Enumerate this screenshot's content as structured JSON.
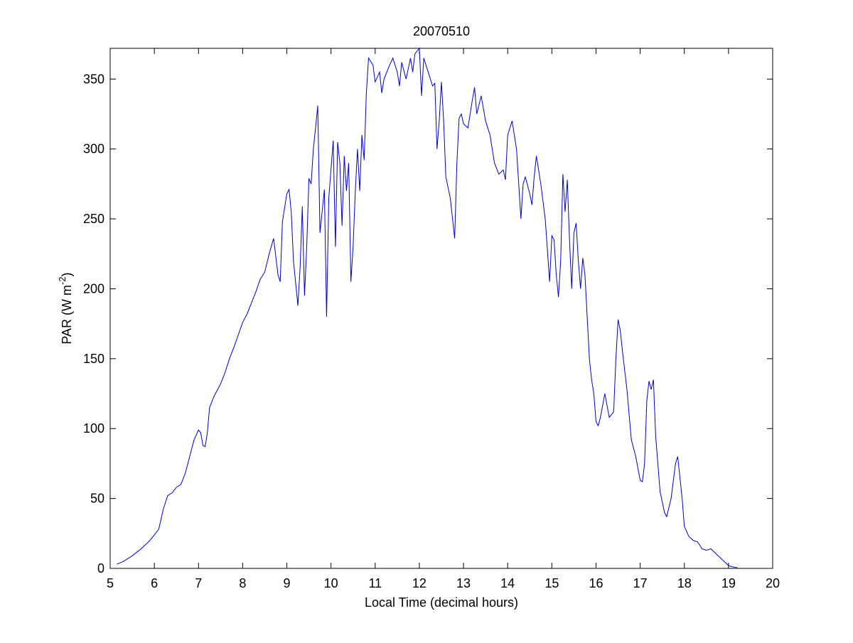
{
  "chart_data": {
    "type": "line",
    "title": "20070510",
    "xlabel": "Local Time (decimal hours)",
    "ylabel": [
      "PAR (W m",
      "-2",
      ")"
    ],
    "xlim": [
      5,
      20
    ],
    "ylim": [
      0,
      372
    ],
    "xticks": [
      5,
      6,
      7,
      8,
      9,
      10,
      11,
      12,
      13,
      14,
      15,
      16,
      17,
      18,
      19,
      20
    ],
    "yticks": [
      0,
      50,
      100,
      150,
      200,
      250,
      300,
      350
    ],
    "grid": false,
    "series": [
      {
        "color": "#0000cc",
        "x": [
          5.15,
          5.3,
          5.5,
          5.7,
          5.9,
          6.0,
          6.1,
          6.2,
          6.3,
          6.4,
          6.5,
          6.6,
          6.7,
          6.8,
          6.9,
          7.0,
          7.05,
          7.1,
          7.15,
          7.2,
          7.25,
          7.35,
          7.5,
          7.6,
          7.7,
          7.8,
          7.9,
          8.0,
          8.1,
          8.2,
          8.3,
          8.4,
          8.5,
          8.6,
          8.7,
          8.8,
          8.85,
          8.9,
          9.0,
          9.05,
          9.1,
          9.15,
          9.25,
          9.3,
          9.35,
          9.4,
          9.45,
          9.5,
          9.55,
          9.6,
          9.65,
          9.7,
          9.75,
          9.85,
          9.9,
          9.95,
          10.05,
          10.1,
          10.15,
          10.2,
          10.25,
          10.3,
          10.35,
          10.4,
          10.45,
          10.5,
          10.55,
          10.6,
          10.65,
          10.7,
          10.75,
          10.8,
          10.85,
          10.95,
          11.0,
          11.1,
          11.15,
          11.2,
          11.3,
          11.4,
          11.5,
          11.55,
          11.6,
          11.7,
          11.8,
          11.85,
          11.9,
          12.0,
          12.05,
          12.1,
          12.2,
          12.3,
          12.35,
          12.4,
          12.45,
          12.5,
          12.55,
          12.6,
          12.7,
          12.8,
          12.85,
          12.9,
          12.95,
          13.0,
          13.1,
          13.2,
          13.25,
          13.3,
          13.4,
          13.5,
          13.6,
          13.7,
          13.8,
          13.9,
          13.95,
          14.0,
          14.1,
          14.2,
          14.3,
          14.35,
          14.4,
          14.5,
          14.55,
          14.6,
          14.65,
          14.75,
          14.85,
          14.95,
          15.0,
          15.05,
          15.1,
          15.15,
          15.2,
          15.25,
          15.3,
          15.35,
          15.4,
          15.45,
          15.5,
          15.55,
          15.6,
          15.65,
          15.7,
          15.75,
          15.8,
          15.85,
          15.9,
          15.95,
          16.0,
          16.05,
          16.1,
          16.2,
          16.3,
          16.4,
          16.45,
          16.5,
          16.55,
          16.6,
          16.7,
          16.75,
          16.8,
          16.9,
          17.0,
          17.05,
          17.1,
          17.15,
          17.2,
          17.25,
          17.3,
          17.35,
          17.45,
          17.55,
          17.6,
          17.7,
          17.8,
          17.85,
          17.95,
          18.0,
          18.1,
          18.2,
          18.3,
          18.4,
          18.5,
          18.6,
          18.7,
          18.8,
          18.9,
          19.0,
          19.1,
          19.2
        ],
        "values": [
          3,
          5,
          9,
          14,
          20,
          24,
          28,
          42,
          52,
          54,
          58,
          60,
          68,
          80,
          92,
          99,
          97,
          88,
          87,
          97,
          115,
          123,
          132,
          140,
          150,
          158,
          167,
          176,
          182,
          190,
          198,
          207,
          212,
          225,
          236,
          210,
          205,
          248,
          268,
          271,
          255,
          220,
          188,
          215,
          259,
          195,
          230,
          279,
          275,
          300,
          315,
          331,
          240,
          271,
          180,
          265,
          306,
          230,
          305,
          290,
          245,
          295,
          270,
          290,
          205,
          230,
          270,
          300,
          270,
          310,
          292,
          340,
          365,
          360,
          348,
          355,
          340,
          350,
          358,
          365,
          355,
          345,
          362,
          350,
          365,
          355,
          368,
          372,
          338,
          365,
          355,
          345,
          347,
          300,
          320,
          348,
          320,
          280,
          265,
          236,
          290,
          322,
          325,
          318,
          315,
          335,
          344,
          325,
          338,
          320,
          310,
          290,
          282,
          285,
          278,
          310,
          320,
          300,
          250,
          275,
          280,
          268,
          260,
          280,
          295,
          275,
          250,
          205,
          238,
          235,
          210,
          194,
          220,
          282,
          255,
          278,
          235,
          200,
          240,
          247,
          220,
          200,
          222,
          210,
          180,
          150,
          135,
          125,
          105,
          102,
          108,
          125,
          108,
          112,
          150,
          178,
          170,
          155,
          128,
          110,
          92,
          80,
          63,
          62,
          75,
          120,
          134,
          128,
          135,
          95,
          55,
          40,
          37,
          50,
          75,
          80,
          50,
          30,
          23,
          20,
          19,
          14,
          13,
          14,
          11,
          8,
          5,
          2,
          1,
          0.5
        ]
      }
    ]
  }
}
